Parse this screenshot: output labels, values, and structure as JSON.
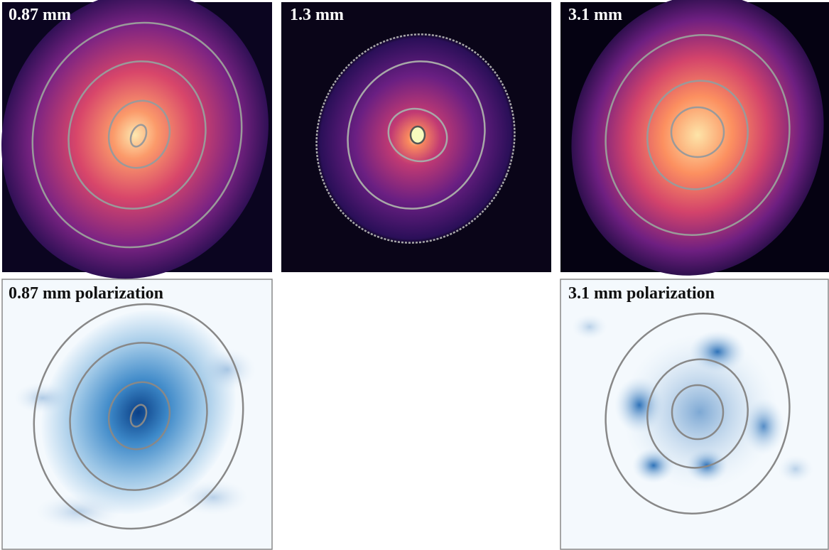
{
  "panels": [
    {
      "label": "0.87 mm"
    },
    {
      "label": "1.3 mm"
    },
    {
      "label": "3.1 mm"
    },
    {
      "label": "0.87 mm polarization"
    },
    {
      "label": "3.1 mm polarization"
    }
  ]
}
